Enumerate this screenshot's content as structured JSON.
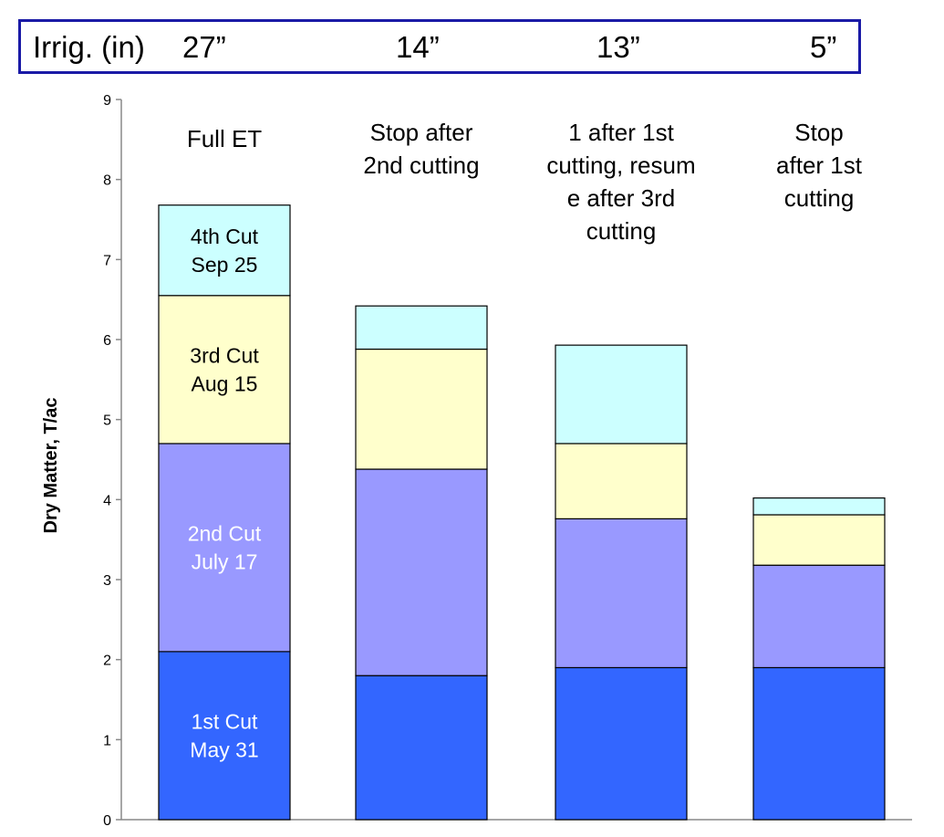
{
  "irrigation_header": {
    "label": "Irrig. (in)",
    "values": [
      "27”",
      "14”",
      "13”",
      "5”"
    ]
  },
  "chart_data": {
    "type": "bar",
    "stacked": true,
    "categories": [
      [
        "Full ET"
      ],
      [
        "Stop after",
        "2nd cutting"
      ],
      [
        "1 after 1st",
        "cutting,  resum",
        "e after 3rd",
        "cutting"
      ],
      [
        "Stop",
        "after 1st",
        "cutting"
      ]
    ],
    "series": [
      {
        "name": "1st Cut\nMay 31",
        "color": "#3366ff",
        "text_color": "#ffffff",
        "values": [
          2.1,
          1.8,
          1.9,
          1.9
        ]
      },
      {
        "name": "2nd Cut\nJuly 17",
        "color": "#9999ff",
        "text_color": "#ffffff",
        "values": [
          2.6,
          2.58,
          1.86,
          1.28
        ]
      },
      {
        "name": "3rd Cut\nAug 15",
        "color": "#ffffcc",
        "text_color": "#000000",
        "values": [
          1.85,
          1.5,
          0.94,
          0.63
        ]
      },
      {
        "name": "4th Cut\nSep 25",
        "color": "#ccffff",
        "text_color": "#000000",
        "values": [
          1.13,
          0.54,
          1.23,
          0.21
        ]
      }
    ],
    "ylabel": "Dry Matter, T/ac",
    "ylim": [
      0,
      9
    ],
    "yticks": [
      0,
      1,
      2,
      3,
      4,
      5,
      6,
      7,
      8,
      9
    ],
    "grid": false,
    "legend": "none"
  }
}
